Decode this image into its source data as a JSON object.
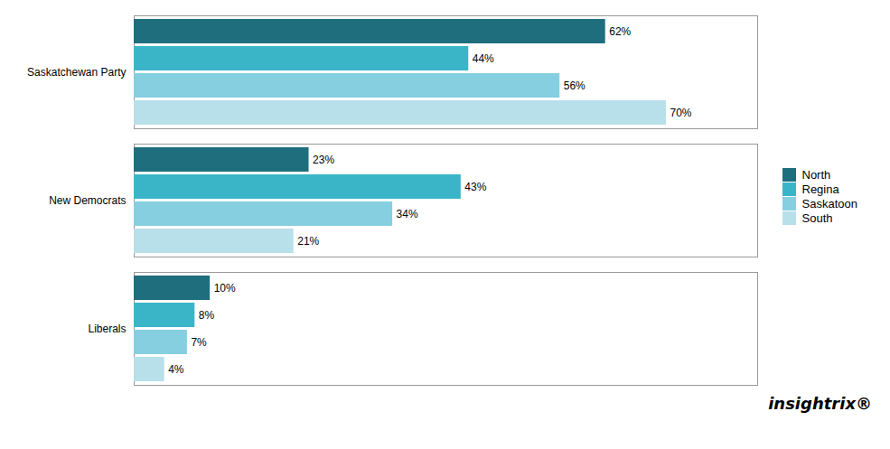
{
  "chart_data": {
    "type": "bar",
    "orientation": "horizontal",
    "categories": [
      "Saskatchewan Party",
      "New Democrats",
      "Liberals"
    ],
    "series": [
      {
        "name": "North",
        "color": "#1e6e7e",
        "values": [
          62,
          23,
          10
        ],
        "value_labels": [
          "62%",
          "23%",
          "10%"
        ]
      },
      {
        "name": "Regina",
        "color": "#3ab5c8",
        "values": [
          44,
          43,
          8
        ],
        "value_labels": [
          "44%",
          "43%",
          "8%"
        ]
      },
      {
        "name": "Saskatoon",
        "color": "#85cfe0",
        "values": [
          56,
          34,
          7
        ],
        "value_labels": [
          "56%",
          "34%",
          "7%"
        ]
      },
      {
        "name": "South",
        "color": "#b8e0ea",
        "values": [
          70,
          21,
          4
        ],
        "value_labels": [
          "70%",
          "21%",
          "4%"
        ]
      }
    ],
    "xlim": [
      0,
      82
    ],
    "data_labels": true,
    "tick_labels": "y",
    "legend": "right",
    "annotations": [
      "insightrix®"
    ]
  }
}
